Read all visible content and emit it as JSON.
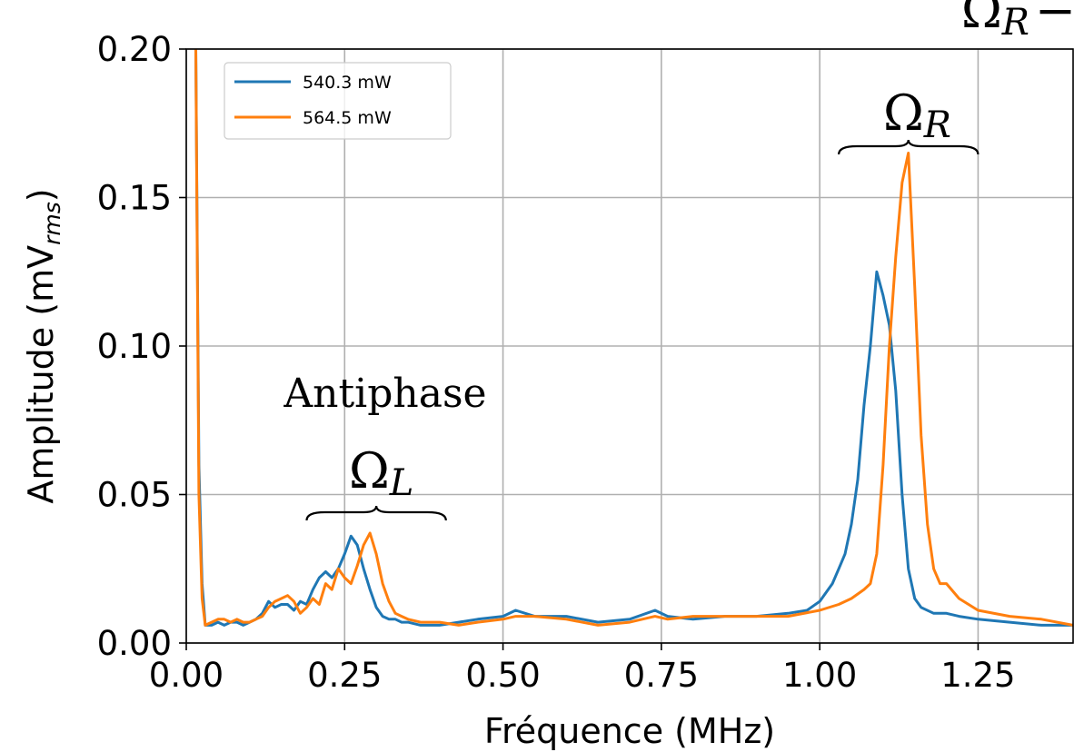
{
  "chart_data": {
    "type": "line",
    "xlabel": "Fréquence (MHz)",
    "ylabel": {
      "main": "Amplitude (mV",
      "sub": "rms",
      "close": ")"
    },
    "xlim": [
      0,
      1.4
    ],
    "ylim": [
      0,
      0.2
    ],
    "xticks": [
      0.0,
      0.25,
      0.5,
      0.75,
      1.0,
      1.25
    ],
    "xtick_labels": [
      "0.00",
      "0.25",
      "0.50",
      "0.75",
      "1.00",
      "1.25"
    ],
    "yticks": [
      0.0,
      0.05,
      0.1,
      0.15,
      0.2
    ],
    "ytick_labels": [
      "0.00",
      "0.05",
      "0.10",
      "0.15",
      "0.20"
    ],
    "grid": true,
    "legend": {
      "placement": "top-left"
    },
    "annotations": {
      "antiphase": "Antiphase",
      "omega_symbol": "Ω",
      "omega_l_sub": "L",
      "omega_r_sub": "R",
      "omega_r_clipped": "Ω",
      "omega_r_clipped_sub": "R",
      "omega_r_clipped_tail": "−",
      "omega_l_brace_range": [
        0.19,
        0.41
      ],
      "omega_r_brace_range": [
        1.03,
        1.25
      ]
    },
    "series": [
      {
        "name": "540.3 mW",
        "color": "#1f77b4",
        "x": [
          0.015,
          0.02,
          0.025,
          0.03,
          0.04,
          0.05,
          0.06,
          0.07,
          0.08,
          0.09,
          0.1,
          0.11,
          0.12,
          0.13,
          0.14,
          0.15,
          0.16,
          0.17,
          0.18,
          0.19,
          0.2,
          0.21,
          0.22,
          0.23,
          0.24,
          0.25,
          0.26,
          0.27,
          0.28,
          0.29,
          0.3,
          0.31,
          0.32,
          0.33,
          0.34,
          0.35,
          0.37,
          0.4,
          0.43,
          0.46,
          0.5,
          0.52,
          0.55,
          0.6,
          0.65,
          0.7,
          0.74,
          0.76,
          0.8,
          0.85,
          0.9,
          0.95,
          0.98,
          1.0,
          1.02,
          1.03,
          1.04,
          1.05,
          1.06,
          1.07,
          1.08,
          1.09,
          1.1,
          1.11,
          1.12,
          1.13,
          1.14,
          1.15,
          1.16,
          1.18,
          1.2,
          1.22,
          1.25,
          1.3,
          1.35,
          1.4
        ],
        "y": [
          0.2,
          0.06,
          0.02,
          0.006,
          0.006,
          0.007,
          0.006,
          0.007,
          0.007,
          0.006,
          0.007,
          0.008,
          0.01,
          0.014,
          0.012,
          0.013,
          0.013,
          0.011,
          0.014,
          0.013,
          0.018,
          0.022,
          0.024,
          0.022,
          0.025,
          0.03,
          0.036,
          0.033,
          0.025,
          0.018,
          0.012,
          0.009,
          0.008,
          0.008,
          0.007,
          0.007,
          0.006,
          0.006,
          0.007,
          0.008,
          0.009,
          0.011,
          0.009,
          0.009,
          0.007,
          0.008,
          0.011,
          0.009,
          0.008,
          0.009,
          0.009,
          0.01,
          0.011,
          0.014,
          0.02,
          0.025,
          0.03,
          0.04,
          0.055,
          0.08,
          0.1,
          0.125,
          0.117,
          0.107,
          0.085,
          0.05,
          0.025,
          0.015,
          0.012,
          0.01,
          0.01,
          0.009,
          0.008,
          0.007,
          0.006,
          0.006
        ]
      },
      {
        "name": "564.5 mW",
        "color": "#ff7f0e",
        "x": [
          0.015,
          0.02,
          0.025,
          0.03,
          0.04,
          0.05,
          0.06,
          0.07,
          0.08,
          0.09,
          0.1,
          0.11,
          0.12,
          0.13,
          0.14,
          0.15,
          0.16,
          0.17,
          0.18,
          0.19,
          0.2,
          0.21,
          0.22,
          0.23,
          0.24,
          0.25,
          0.26,
          0.27,
          0.28,
          0.29,
          0.3,
          0.31,
          0.32,
          0.33,
          0.34,
          0.35,
          0.37,
          0.4,
          0.43,
          0.46,
          0.5,
          0.52,
          0.55,
          0.6,
          0.65,
          0.7,
          0.74,
          0.76,
          0.8,
          0.85,
          0.9,
          0.95,
          1.0,
          1.03,
          1.05,
          1.07,
          1.08,
          1.09,
          1.1,
          1.11,
          1.12,
          1.13,
          1.14,
          1.15,
          1.16,
          1.17,
          1.18,
          1.19,
          1.2,
          1.22,
          1.25,
          1.3,
          1.35,
          1.4
        ],
        "y": [
          0.2,
          0.05,
          0.015,
          0.006,
          0.007,
          0.008,
          0.008,
          0.007,
          0.008,
          0.007,
          0.007,
          0.008,
          0.009,
          0.012,
          0.014,
          0.015,
          0.016,
          0.014,
          0.01,
          0.012,
          0.015,
          0.013,
          0.02,
          0.018,
          0.025,
          0.022,
          0.02,
          0.026,
          0.033,
          0.037,
          0.03,
          0.02,
          0.014,
          0.01,
          0.009,
          0.008,
          0.007,
          0.007,
          0.006,
          0.007,
          0.008,
          0.009,
          0.009,
          0.008,
          0.006,
          0.007,
          0.009,
          0.008,
          0.009,
          0.009,
          0.009,
          0.009,
          0.011,
          0.013,
          0.015,
          0.018,
          0.02,
          0.03,
          0.06,
          0.1,
          0.13,
          0.155,
          0.165,
          0.12,
          0.07,
          0.04,
          0.025,
          0.02,
          0.02,
          0.015,
          0.011,
          0.009,
          0.008,
          0.006
        ]
      }
    ]
  }
}
